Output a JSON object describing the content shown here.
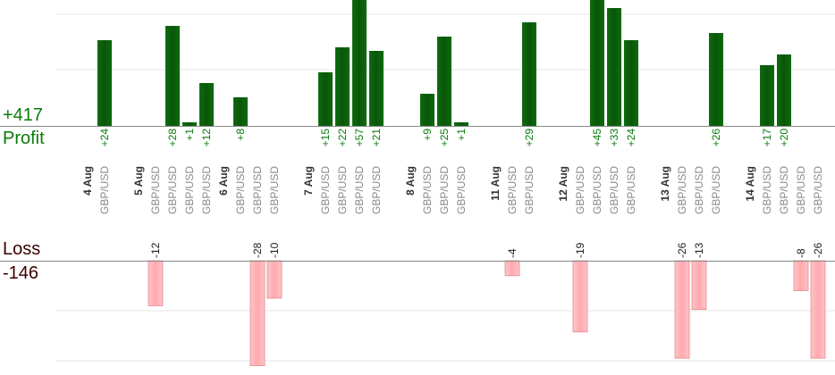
{
  "summary": {
    "profit_total": "+417",
    "profit_label": "Profit",
    "loss_label": "Loss",
    "loss_total": "-146"
  },
  "colors": {
    "profit_bar": "#0b5e0b",
    "profit_text": "#0a7a0a",
    "loss_bar": "#ffb3b8",
    "loss_bar_edge": "#e58a90",
    "loss_text": "#3a0000",
    "grid": "#e6e6e6",
    "axis": "#888888"
  },
  "chart_data": {
    "type": "bar",
    "title": "",
    "xlabel": "",
    "ylabel": "",
    "profit_axis_visible_max": 29,
    "loss_axis_visible_min": -26,
    "grid": true,
    "columns": [
      {
        "date": "4 Aug",
        "pair": "",
        "value": null
      },
      {
        "date": "",
        "pair": "GBP/USD",
        "value": 24
      },
      {
        "date": "",
        "pair": "",
        "value": null
      },
      {
        "date": "5 Aug",
        "pair": "",
        "value": null
      },
      {
        "date": "",
        "pair": "GBP/USD",
        "value": -12
      },
      {
        "date": "",
        "pair": "GBP/USD",
        "value": 28
      },
      {
        "date": "",
        "pair": "GBP/USD",
        "value": 1
      },
      {
        "date": "",
        "pair": "GBP/USD",
        "value": 12
      },
      {
        "date": "6 Aug",
        "pair": "",
        "value": null
      },
      {
        "date": "",
        "pair": "GBP/USD",
        "value": 8
      },
      {
        "date": "",
        "pair": "GBP/USD",
        "value": -28
      },
      {
        "date": "",
        "pair": "GBP/USD",
        "value": -10
      },
      {
        "date": "",
        "pair": "",
        "value": null
      },
      {
        "date": "7 Aug",
        "pair": "",
        "value": null
      },
      {
        "date": "",
        "pair": "GBP/USD",
        "value": 15
      },
      {
        "date": "",
        "pair": "GBP/USD",
        "value": 22
      },
      {
        "date": "",
        "pair": "GBP/USD",
        "value": 57
      },
      {
        "date": "",
        "pair": "GBP/USD",
        "value": 21
      },
      {
        "date": "",
        "pair": "",
        "value": null
      },
      {
        "date": "8 Aug",
        "pair": "",
        "value": null
      },
      {
        "date": "",
        "pair": "GBP/USD",
        "value": 9
      },
      {
        "date": "",
        "pair": "GBP/USD",
        "value": 25
      },
      {
        "date": "",
        "pair": "GBP/USD",
        "value": 1
      },
      {
        "date": "",
        "pair": "",
        "value": null
      },
      {
        "date": "11 Aug",
        "pair": "",
        "value": null
      },
      {
        "date": "",
        "pair": "GBP/USD",
        "value": -4
      },
      {
        "date": "",
        "pair": "GBP/USD",
        "value": 29
      },
      {
        "date": "",
        "pair": "",
        "value": null
      },
      {
        "date": "12 Aug",
        "pair": "",
        "value": null
      },
      {
        "date": "",
        "pair": "GBP/USD",
        "value": -19
      },
      {
        "date": "",
        "pair": "GBP/USD",
        "value": 45
      },
      {
        "date": "",
        "pair": "GBP/USD",
        "value": 33
      },
      {
        "date": "",
        "pair": "GBP/USD",
        "value": 24
      },
      {
        "date": "",
        "pair": "",
        "value": null
      },
      {
        "date": "13 Aug",
        "pair": "",
        "value": null
      },
      {
        "date": "",
        "pair": "GBP/USD",
        "value": -26
      },
      {
        "date": "",
        "pair": "GBP/USD",
        "value": -13
      },
      {
        "date": "",
        "pair": "GBP/USD",
        "value": 26
      },
      {
        "date": "",
        "pair": "",
        "value": null
      },
      {
        "date": "14 Aug",
        "pair": "",
        "value": null
      },
      {
        "date": "",
        "pair": "GBP/USD",
        "value": 17
      },
      {
        "date": "",
        "pair": "GBP/USD",
        "value": 20
      },
      {
        "date": "",
        "pair": "GBP/USD",
        "value": -8
      },
      {
        "date": "",
        "pair": "GBP/USD",
        "value": -26
      }
    ]
  }
}
